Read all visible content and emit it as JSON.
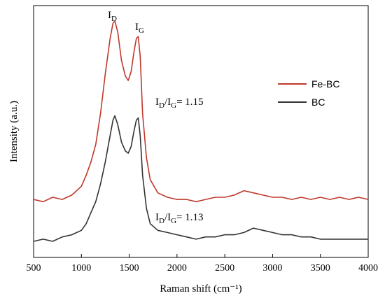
{
  "chart_data": {
    "type": "line",
    "xlabel": "Raman shift (cm⁻¹)",
    "ylabel": "Intensity (a.u.)",
    "xlim": [
      500,
      4000
    ],
    "xticks": [
      500,
      1000,
      1500,
      2000,
      2500,
      3000,
      3500,
      4000
    ],
    "y_ticks_visible": false,
    "grid": false,
    "legend_position": "right",
    "series": [
      {
        "name": "Fe-BC",
        "color": "#c0392b",
        "x": [
          500,
          600,
          700,
          800,
          900,
          1000,
          1050,
          1100,
          1150,
          1200,
          1250,
          1300,
          1330,
          1350,
          1380,
          1420,
          1460,
          1490,
          1520,
          1550,
          1575,
          1595,
          1615,
          1640,
          1680,
          1720,
          1800,
          1900,
          2000,
          2100,
          2200,
          2300,
          2400,
          2500,
          2600,
          2700,
          2800,
          2900,
          3000,
          3100,
          3200,
          3300,
          3400,
          3500,
          3600,
          3700,
          3800,
          3900,
          4000
        ],
        "y": [
          0.23,
          0.22,
          0.24,
          0.23,
          0.25,
          0.29,
          0.34,
          0.4,
          0.48,
          0.62,
          0.8,
          0.96,
          1.03,
          1.04,
          0.99,
          0.86,
          0.79,
          0.77,
          0.81,
          0.9,
          0.96,
          0.97,
          0.88,
          0.62,
          0.42,
          0.32,
          0.26,
          0.24,
          0.23,
          0.23,
          0.22,
          0.23,
          0.24,
          0.24,
          0.25,
          0.27,
          0.26,
          0.25,
          0.24,
          0.24,
          0.23,
          0.24,
          0.23,
          0.24,
          0.23,
          0.24,
          0.23,
          0.24,
          0.23
        ]
      },
      {
        "name": "BC",
        "color": "#333333",
        "x": [
          500,
          600,
          700,
          800,
          900,
          1000,
          1050,
          1100,
          1150,
          1200,
          1250,
          1300,
          1330,
          1350,
          1380,
          1420,
          1460,
          1490,
          1520,
          1550,
          1575,
          1595,
          1615,
          1640,
          1680,
          1720,
          1800,
          1900,
          2000,
          2100,
          2200,
          2300,
          2400,
          2500,
          2600,
          2700,
          2800,
          2900,
          3000,
          3100,
          3200,
          3300,
          3400,
          3500,
          3600,
          3700,
          3800,
          3900,
          4000
        ],
        "y": [
          0.04,
          0.05,
          0.04,
          0.06,
          0.07,
          0.09,
          0.12,
          0.17,
          0.22,
          0.3,
          0.4,
          0.52,
          0.59,
          0.61,
          0.57,
          0.49,
          0.45,
          0.44,
          0.47,
          0.54,
          0.59,
          0.6,
          0.52,
          0.34,
          0.19,
          0.12,
          0.09,
          0.08,
          0.07,
          0.06,
          0.05,
          0.06,
          0.06,
          0.07,
          0.07,
          0.08,
          0.1,
          0.09,
          0.08,
          0.07,
          0.07,
          0.06,
          0.06,
          0.05,
          0.05,
          0.05,
          0.05,
          0.05,
          0.05
        ]
      }
    ],
    "annotations": {
      "peak_d": "D",
      "peak_g": "G",
      "ratio_label": "D/G",
      "ratio_fe_bc": "= 1.15",
      "ratio_bc": "= 1.13"
    }
  }
}
